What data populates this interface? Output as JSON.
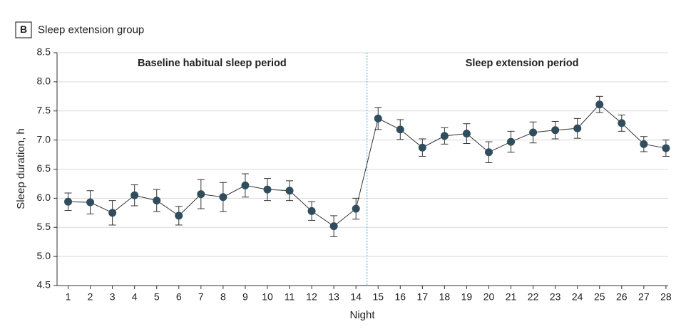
{
  "chart_data": {
    "type": "line",
    "panel_label": "B",
    "title": "Sleep extension group",
    "x_label": "Night",
    "y_label": "Sleep duration, h",
    "x": [
      1,
      2,
      3,
      4,
      5,
      6,
      7,
      8,
      9,
      10,
      11,
      12,
      13,
      14,
      15,
      16,
      17,
      18,
      19,
      20,
      21,
      22,
      23,
      24,
      25,
      26,
      27,
      28
    ],
    "xlim": [
      0.5,
      28.1
    ],
    "xticks": [
      1,
      2,
      3,
      4,
      5,
      6,
      7,
      8,
      9,
      10,
      11,
      12,
      13,
      14,
      15,
      16,
      17,
      18,
      19,
      20,
      21,
      22,
      23,
      24,
      25,
      26,
      27,
      28
    ],
    "ylim": [
      4.5,
      8.5
    ],
    "yticks": [
      4.5,
      {
        "value": 5,
        "label": "5.0"
      },
      5.5,
      {
        "value": 6,
        "label": "6.0"
      },
      6.5,
      {
        "value": 7,
        "label": "7.0"
      },
      7.5,
      {
        "value": 8,
        "label": "8.0"
      },
      8.5
    ],
    "grid": true,
    "divider_x": 14.5,
    "annotations": [
      {
        "text": "Baseline habitual sleep period",
        "x": 7.5
      },
      {
        "text": "Sleep extension period",
        "x": 21.5
      }
    ],
    "series": [
      {
        "color": "#2f4d5c",
        "line_color": "#333333",
        "values": [
          5.94,
          5.93,
          5.75,
          6.05,
          5.96,
          5.7,
          6.07,
          6.02,
          6.22,
          6.15,
          6.13,
          5.78,
          5.52,
          5.82,
          7.37,
          7.18,
          6.87,
          7.07,
          7.11,
          6.79,
          6.97,
          7.13,
          7.17,
          7.2,
          7.61,
          7.29,
          6.93,
          6.86
        ],
        "errors": [
          0.15,
          0.2,
          0.21,
          0.18,
          0.19,
          0.16,
          0.25,
          0.25,
          0.2,
          0.19,
          0.17,
          0.16,
          0.18,
          0.18,
          0.19,
          0.17,
          0.15,
          0.14,
          0.17,
          0.18,
          0.18,
          0.18,
          0.15,
          0.17,
          0.14,
          0.14,
          0.13,
          0.14
        ]
      }
    ]
  }
}
